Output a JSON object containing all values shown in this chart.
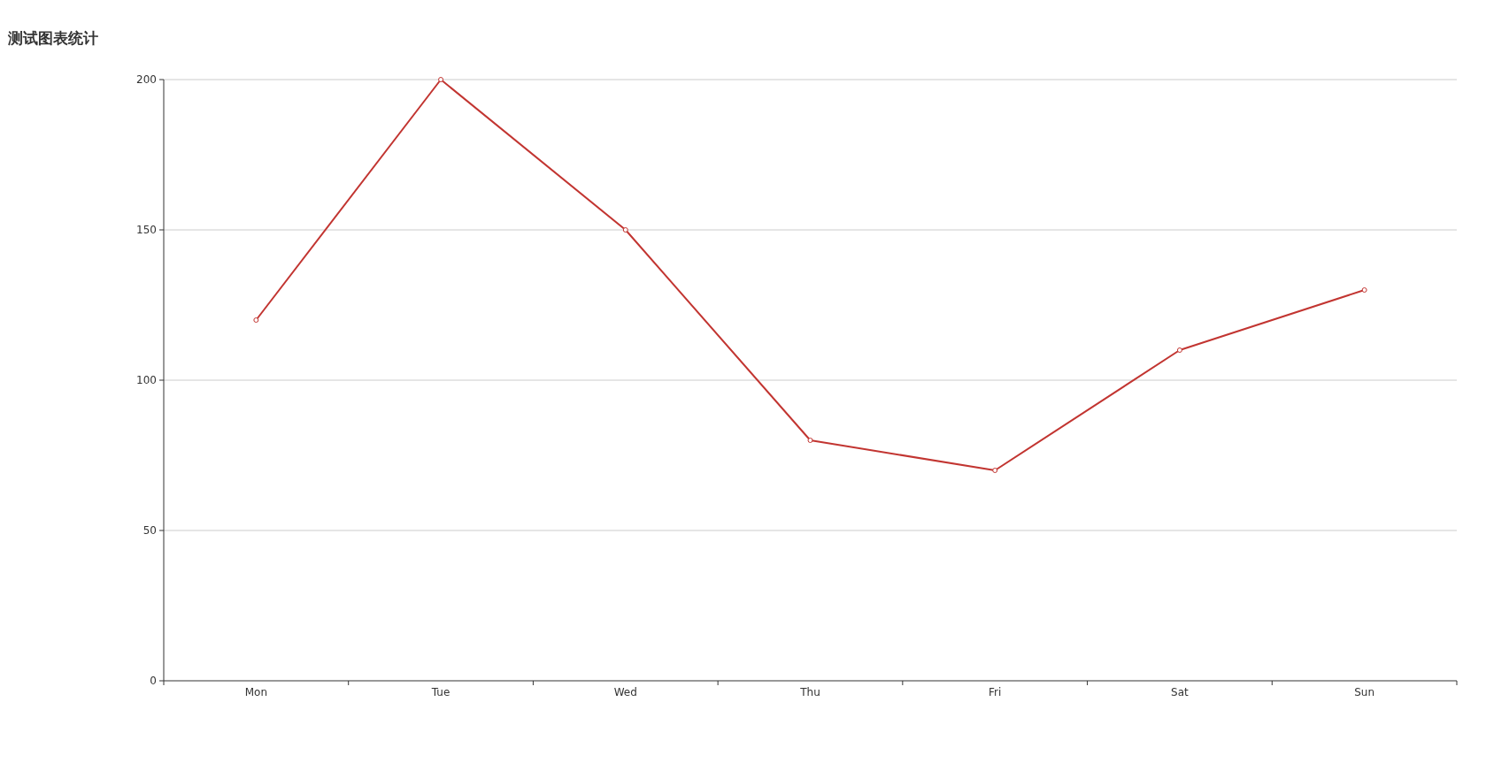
{
  "chart_data": {
    "type": "line",
    "title": "测试图表统计",
    "categories": [
      "Mon",
      "Tue",
      "Wed",
      "Thu",
      "Fri",
      "Sat",
      "Sun"
    ],
    "series": [
      {
        "color": "#c23531",
        "values": [
          120,
          200,
          150,
          80,
          70,
          110,
          130
        ]
      }
    ],
    "ylim": [
      0,
      200
    ],
    "yticks": [
      0,
      50,
      100,
      150,
      200
    ],
    "grid": "y",
    "marker": "circle",
    "line_style": "solid"
  }
}
